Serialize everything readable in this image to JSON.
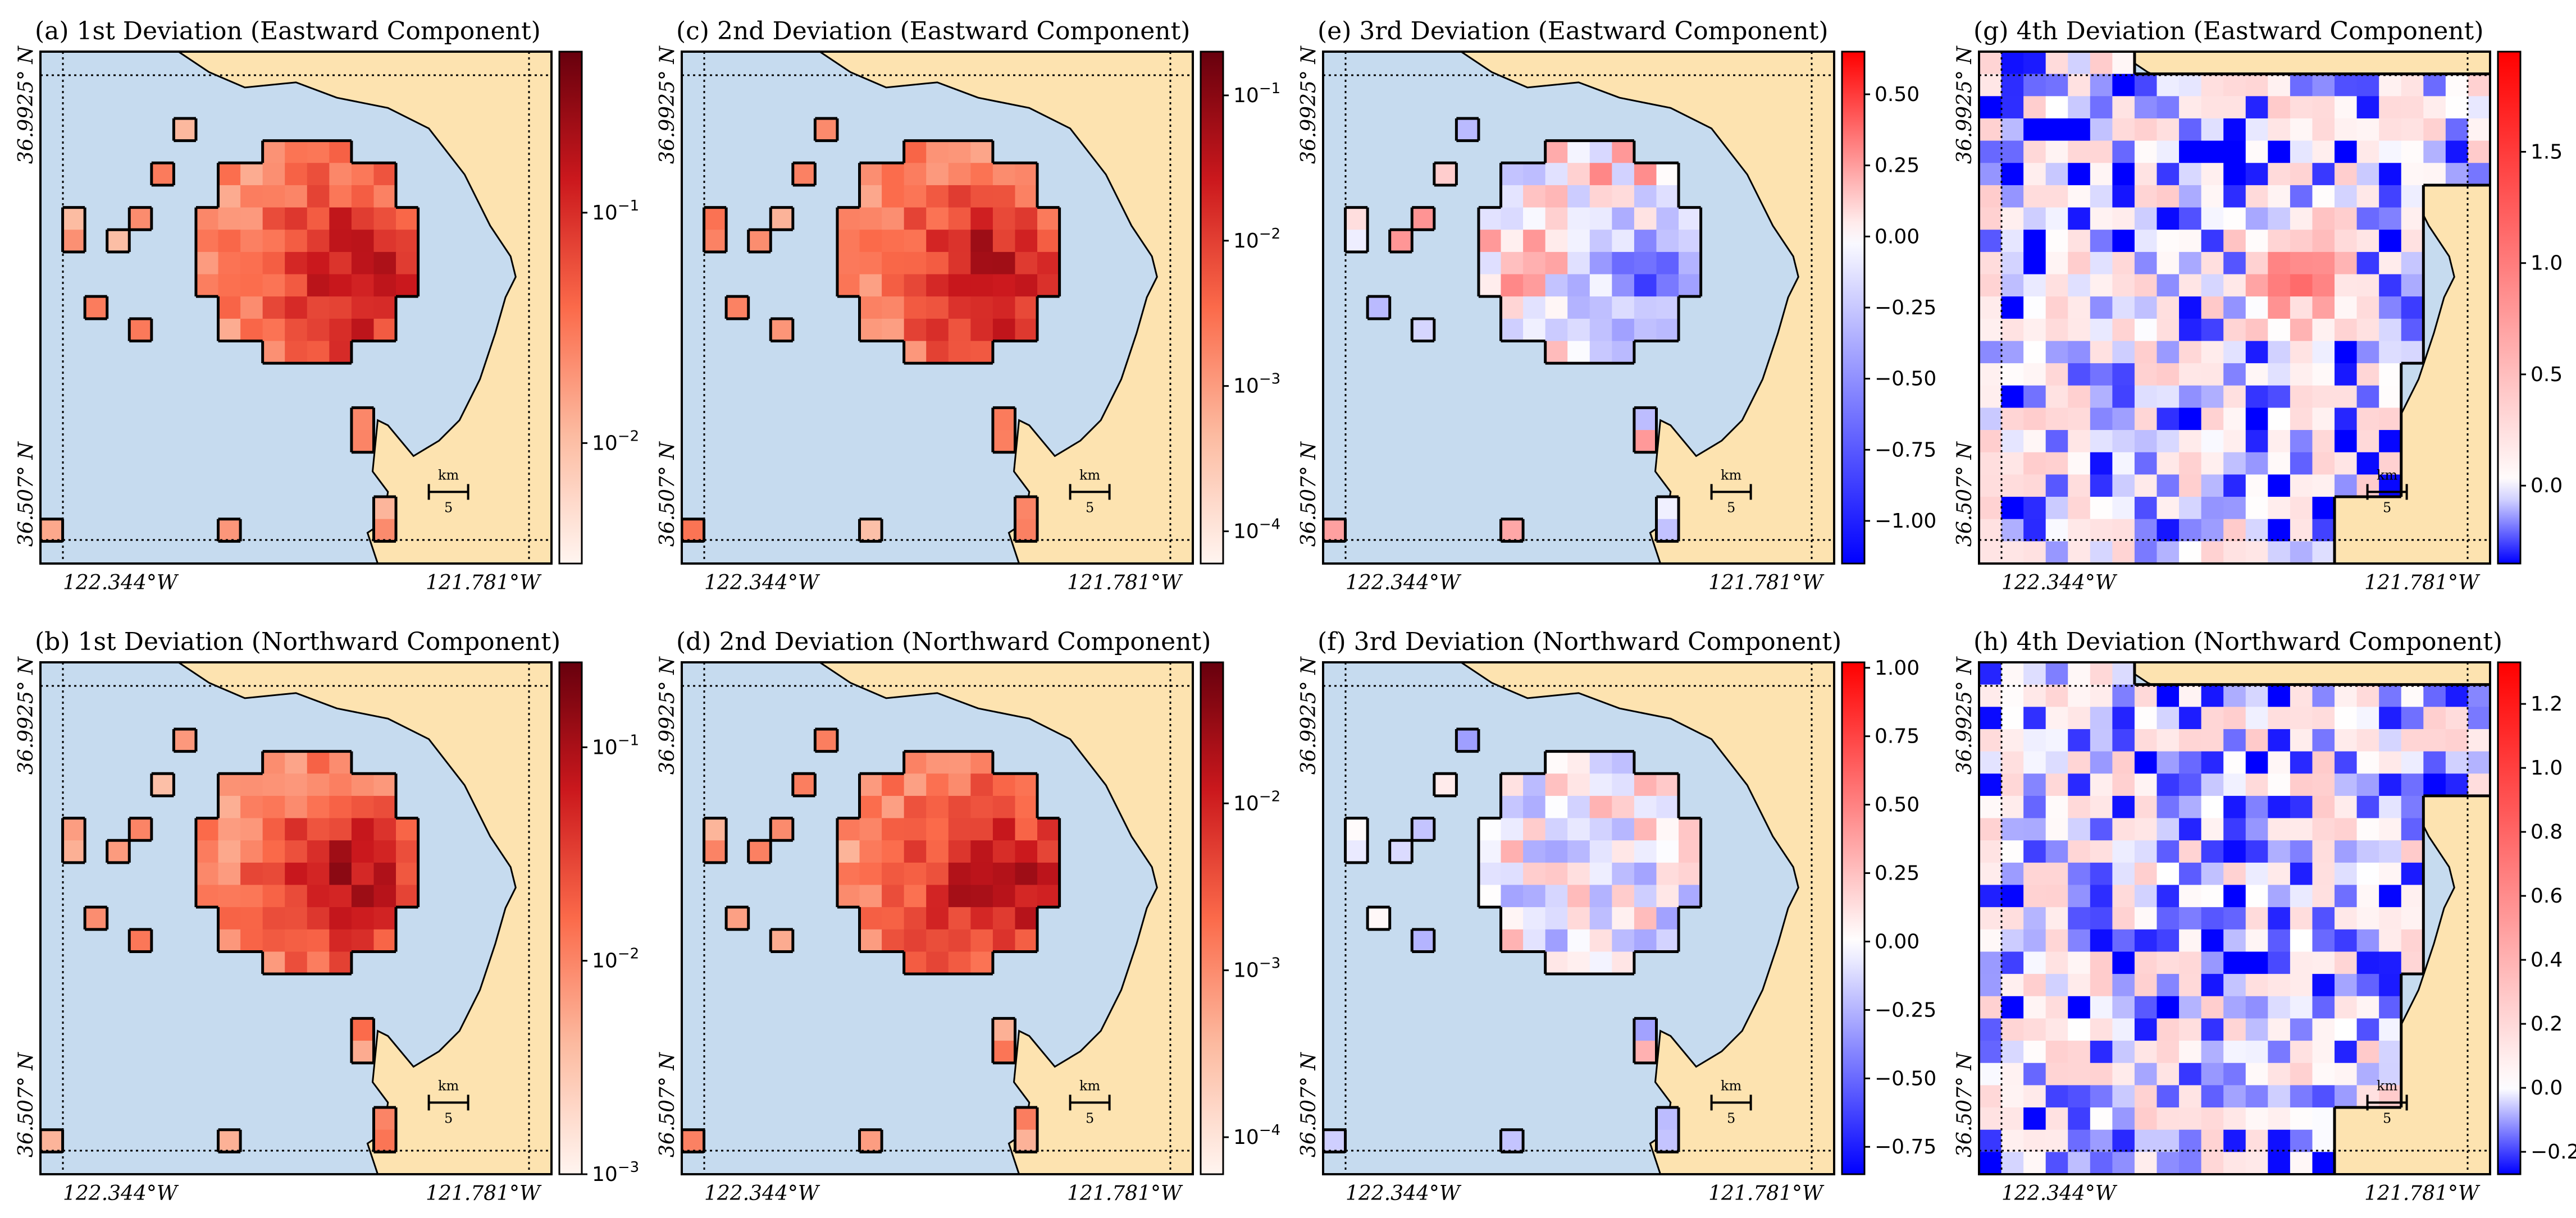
{
  "figure": {
    "background": "#ffffff",
    "sea_color": "#c6dbef",
    "land_color": "#fde3b0",
    "diverging_colors": [
      "#0000ff",
      "#ffffff",
      "#ff0000"
    ],
    "sequential_colors": [
      "#fff5f0",
      "#fcbba1",
      "#fb6a4a",
      "#cb181d",
      "#67000d"
    ]
  },
  "chart_data": [
    {
      "id": "a",
      "type": "heatmap",
      "title": "(a) 1st Deviation (Eastward Component)",
      "scale": "log",
      "vmin": 0.003,
      "vmax": 0.5,
      "cmap": "Reds",
      "colorbar_ticks": [
        "10^-2",
        "10^-1"
      ],
      "ylabels": [
        "36.9925° N",
        "36.507° N"
      ],
      "xlabels": [
        "122.344°W",
        "121.781°W"
      ],
      "scalebar": {
        "unit": "km",
        "value": "5"
      }
    },
    {
      "id": "b",
      "type": "heatmap",
      "title": "(b) 1st Deviation (Northward Component)",
      "scale": "log",
      "vmin": 0.001,
      "vmax": 0.25,
      "cmap": "Reds",
      "colorbar_ticks": [
        "10^-3",
        "10^-2",
        "10^-1"
      ],
      "ylabels": [
        "36.9925° N",
        "36.507° N"
      ],
      "xlabels": [
        "122.344°W",
        "121.781°W"
      ],
      "scalebar": {
        "unit": "km",
        "value": "5"
      }
    },
    {
      "id": "c",
      "type": "heatmap",
      "title": "(c) 2nd Deviation (Eastward Component)",
      "scale": "log",
      "vmin": 6e-05,
      "vmax": 0.2,
      "cmap": "Reds",
      "colorbar_ticks": [
        "10^-4",
        "10^-3",
        "10^-2",
        "10^-1"
      ],
      "ylabels": [
        "36.9925° N",
        "36.507° N"
      ],
      "xlabels": [
        "122.344°W",
        "121.781°W"
      ],
      "scalebar": {
        "unit": "km",
        "value": "5"
      }
    },
    {
      "id": "d",
      "type": "heatmap",
      "title": "(d) 2nd Deviation (Northward Component)",
      "scale": "log",
      "vmin": 6e-05,
      "vmax": 0.07,
      "cmap": "Reds",
      "colorbar_ticks": [
        "10^-4",
        "10^-3",
        "10^-2"
      ],
      "ylabels": [
        "36.9925° N",
        "36.507° N"
      ],
      "xlabels": [
        "122.344°W",
        "121.781°W"
      ],
      "scalebar": {
        "unit": "km",
        "value": "5"
      }
    },
    {
      "id": "e",
      "type": "heatmap",
      "title": "(e) 3rd Deviation (Eastward Component)",
      "scale": "linear",
      "vmin": -1.15,
      "vmax": 0.65,
      "cmap": "bwr",
      "colorbar_ticks": [
        "−1.00",
        "−0.75",
        "−0.50",
        "−0.25",
        "0.00",
        "0.25",
        "0.50"
      ],
      "ylabels": [
        "36.9925° N",
        "36.507° N"
      ],
      "xlabels": [
        "122.344°W",
        "121.781°W"
      ],
      "scalebar": {
        "unit": "km",
        "value": "5"
      }
    },
    {
      "id": "f",
      "type": "heatmap",
      "title": "(f) 3rd Deviation (Northward Component)",
      "scale": "linear",
      "vmin": -0.85,
      "vmax": 1.02,
      "cmap": "bwr",
      "colorbar_ticks": [
        "−0.75",
        "−0.50",
        "−0.25",
        "0.00",
        "0.25",
        "0.50",
        "0.75",
        "1.00"
      ],
      "ylabels": [
        "36.9925° N",
        "36.507° N"
      ],
      "xlabels": [
        "122.344°W",
        "121.781°W"
      ],
      "scalebar": {
        "unit": "km",
        "value": "5"
      }
    },
    {
      "id": "g",
      "type": "heatmap",
      "title": "(g) 4th Deviation (Eastward Component)",
      "scale": "linear",
      "vmin": -0.35,
      "vmax": 1.95,
      "cmap": "bwr",
      "colorbar_ticks": [
        "0.0",
        "0.5",
        "1.0",
        "1.5"
      ],
      "ylabels": [
        "36.9925° N",
        "36.507° N"
      ],
      "xlabels": [
        "122.344°W",
        "121.781°W"
      ],
      "scalebar": {
        "unit": "km",
        "value": "5"
      }
    },
    {
      "id": "h",
      "type": "heatmap",
      "title": "(h) 4th Deviation (Northward Component)",
      "scale": "linear",
      "vmin": -0.27,
      "vmax": 1.33,
      "cmap": "bwr",
      "colorbar_ticks": [
        "−0.2",
        "0.0",
        "0.2",
        "0.4",
        "0.6",
        "0.8",
        "1.0",
        "1.2"
      ],
      "ylabels": [
        "36.9925° N",
        "36.507° N"
      ],
      "xlabels": [
        "122.344°W",
        "121.781°W"
      ],
      "scalebar": {
        "unit": "km",
        "value": "5"
      }
    }
  ]
}
